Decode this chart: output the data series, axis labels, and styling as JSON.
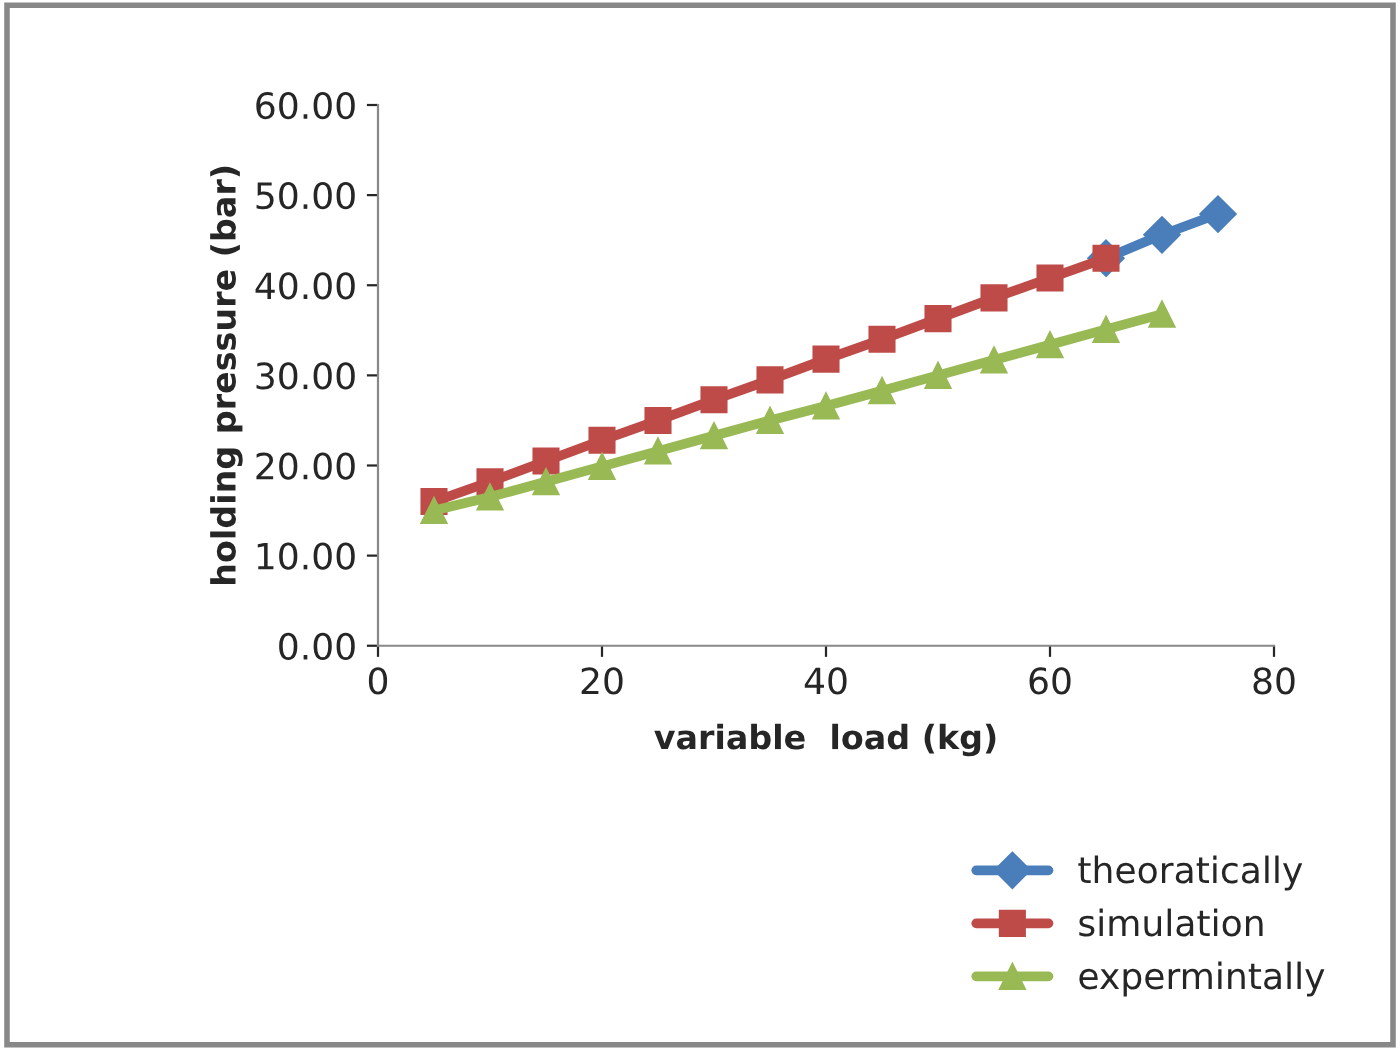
{
  "chart_data": {
    "type": "line",
    "xlabel": "variable  load (kg)",
    "ylabel": "holding pressure (bar)",
    "x": [
      5,
      10,
      15,
      20,
      25,
      30,
      35,
      40,
      45,
      50,
      55,
      60,
      65,
      70,
      75
    ],
    "series": [
      {
        "name": "theoratically",
        "color": "#4a7ebb",
        "marker": "diamond",
        "values": [
          null,
          null,
          null,
          null,
          null,
          null,
          null,
          null,
          null,
          null,
          null,
          null,
          43.0,
          45.6,
          47.9
        ]
      },
      {
        "name": "simulation",
        "color": "#be4b48",
        "marker": "square",
        "values": [
          16.0,
          18.2,
          20.5,
          22.8,
          25.0,
          27.3,
          29.5,
          31.8,
          34.0,
          36.3,
          38.6,
          40.8,
          43.0,
          null,
          null
        ]
      },
      {
        "name": "expermintally",
        "color": "#98b954",
        "marker": "triangle",
        "values": [
          15.0,
          16.5,
          18.2,
          19.9,
          21.6,
          23.3,
          25.0,
          26.6,
          28.3,
          30.0,
          31.7,
          33.4,
          35.1,
          36.8,
          null
        ]
      }
    ],
    "xlim": [
      0,
      80
    ],
    "xticks": [
      0,
      20,
      40,
      60,
      80
    ],
    "ylim": [
      0,
      60
    ],
    "yticks": [
      {
        "value": 0,
        "label": "0.00"
      },
      {
        "value": 10,
        "label": "10.00"
      },
      {
        "value": 20,
        "label": "20.00"
      },
      {
        "value": 30,
        "label": "30.00"
      },
      {
        "value": 40,
        "label": "40.00"
      },
      {
        "value": 50,
        "label": "50.00"
      },
      {
        "value": 60,
        "label": "60.00"
      }
    ],
    "grid": false,
    "legend": "bottom right"
  }
}
